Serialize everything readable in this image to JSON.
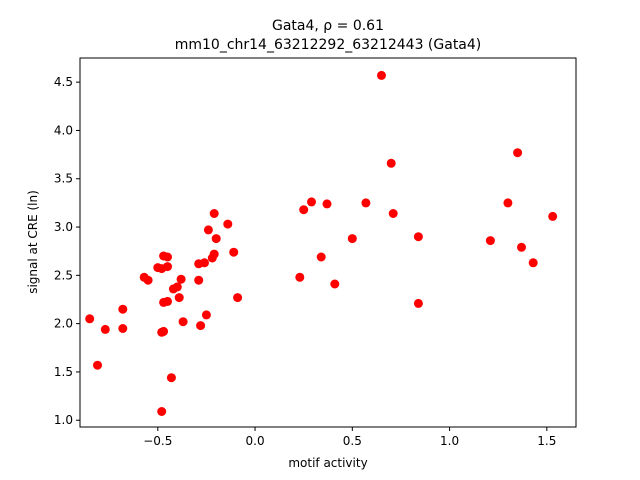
{
  "chart_data": {
    "type": "scatter",
    "title_line1": "Gata4, ρ = 0.61",
    "title_line2": "mm10_chr14_63212292_63212443 (Gata4)",
    "xlabel": "motif activity",
    "ylabel": "signal at CRE (ln)",
    "xlim": [
      -0.9,
      1.65
    ],
    "ylim": [
      0.93,
      4.75
    ],
    "xticks": [
      -0.5,
      0.0,
      0.5,
      1.0,
      1.5
    ],
    "xtick_labels": [
      "−0.5",
      "0.0",
      "0.5",
      "1.0",
      "1.5"
    ],
    "yticks": [
      1.0,
      1.5,
      2.0,
      2.5,
      3.0,
      3.5,
      4.0,
      4.5
    ],
    "ytick_labels": [
      "1.0",
      "1.5",
      "2.0",
      "2.5",
      "3.0",
      "3.5",
      "4.0",
      "4.5"
    ],
    "marker_color": "#ff0000",
    "grid": false,
    "points": [
      [
        -0.85,
        2.05
      ],
      [
        -0.81,
        1.57
      ],
      [
        -0.77,
        1.94
      ],
      [
        -0.68,
        2.15
      ],
      [
        -0.68,
        1.95
      ],
      [
        -0.57,
        2.48
      ],
      [
        -0.55,
        2.45
      ],
      [
        -0.5,
        2.58
      ],
      [
        -0.48,
        2.57
      ],
      [
        -0.47,
        2.7
      ],
      [
        -0.45,
        2.69
      ],
      [
        -0.45,
        2.59
      ],
      [
        -0.48,
        1.09
      ],
      [
        -0.47,
        1.92
      ],
      [
        -0.48,
        1.91
      ],
      [
        -0.47,
        2.22
      ],
      [
        -0.45,
        2.23
      ],
      [
        -0.43,
        1.44
      ],
      [
        -0.42,
        2.36
      ],
      [
        -0.4,
        2.38
      ],
      [
        -0.39,
        2.27
      ],
      [
        -0.38,
        2.46
      ],
      [
        -0.37,
        2.02
      ],
      [
        -0.29,
        2.62
      ],
      [
        -0.29,
        2.45
      ],
      [
        -0.28,
        1.98
      ],
      [
        -0.26,
        2.63
      ],
      [
        -0.25,
        2.09
      ],
      [
        -0.24,
        2.97
      ],
      [
        -0.22,
        2.68
      ],
      [
        -0.21,
        2.72
      ],
      [
        -0.21,
        3.14
      ],
      [
        -0.2,
        2.88
      ],
      [
        -0.14,
        3.03
      ],
      [
        -0.11,
        2.74
      ],
      [
        -0.09,
        2.27
      ],
      [
        0.23,
        2.48
      ],
      [
        0.25,
        3.18
      ],
      [
        0.29,
        3.26
      ],
      [
        0.34,
        2.69
      ],
      [
        0.37,
        3.24
      ],
      [
        0.41,
        2.41
      ],
      [
        0.5,
        2.88
      ],
      [
        0.57,
        3.25
      ],
      [
        0.65,
        4.57
      ],
      [
        0.7,
        3.66
      ],
      [
        0.71,
        3.14
      ],
      [
        0.84,
        2.9
      ],
      [
        0.84,
        2.21
      ],
      [
        1.21,
        2.86
      ],
      [
        1.3,
        3.25
      ],
      [
        1.35,
        3.77
      ],
      [
        1.37,
        2.79
      ],
      [
        1.43,
        2.63
      ],
      [
        1.53,
        3.11
      ]
    ]
  }
}
